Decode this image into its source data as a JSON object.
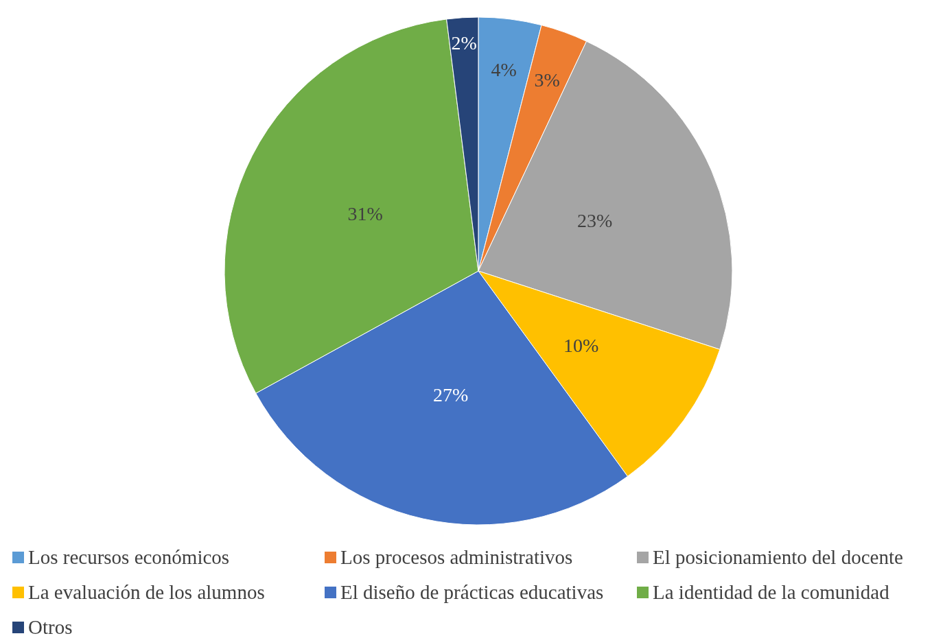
{
  "chart_data": {
    "type": "pie",
    "categories": [
      "Los recursos económicos",
      "Los procesos administrativos",
      "El posicionamiento del docente",
      "La evaluación de los alumnos",
      "El diseño de prácticas educativas",
      "La identidad de la comunidad",
      "Otros"
    ],
    "values": [
      4,
      3,
      23,
      10,
      27,
      31,
      2
    ],
    "value_labels": [
      "4%",
      "3%",
      "23%",
      "10%",
      "27%",
      "31%",
      "2%"
    ],
    "colors": [
      "#5b9bd5",
      "#ed7d31",
      "#a5a5a5",
      "#ffc000",
      "#4472c4",
      "#70ad47",
      "#264478"
    ],
    "legend": "bottom"
  }
}
